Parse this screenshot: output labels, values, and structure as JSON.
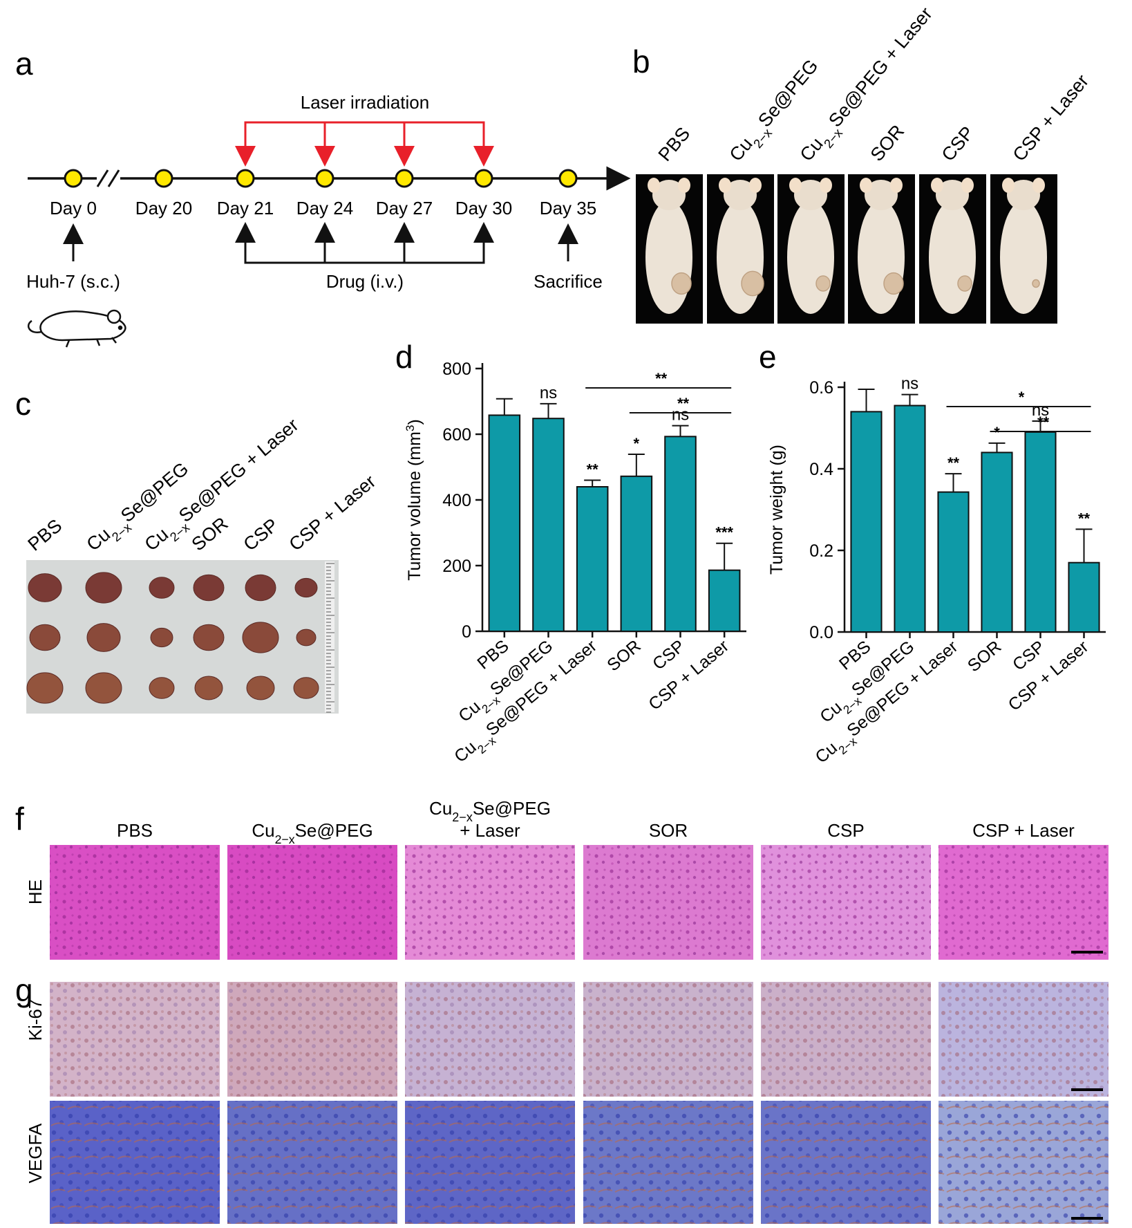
{
  "panel_letters": [
    "a",
    "b",
    "c",
    "d",
    "e",
    "f",
    "g"
  ],
  "timeline": {
    "laser_label": "Laser irradiation",
    "days": [
      "Day 0",
      "Day 20",
      "Day 21",
      "Day 24",
      "Day 27",
      "Day 30",
      "Day 35"
    ],
    "laser_days": [
      "Day 21",
      "Day 24",
      "Day 27",
      "Day 30"
    ],
    "drug_days": [
      "Day 21",
      "Day 24",
      "Day 27",
      "Day 30"
    ],
    "inoculation_label": "Huh-7 (s.c.)",
    "drug_label": "Drug (i.v.)",
    "sacrifice_label": "Sacrifice",
    "node_color": "#ffe800",
    "laser_color": "#e8202a"
  },
  "groups": [
    "PBS",
    "Cu2−xSe@PEG",
    "Cu2−xSe@PEG + Laser",
    "SOR",
    "CSP",
    "CSP + Laser"
  ],
  "group_labels": [
    {
      "pre": "PBS",
      "sub": "",
      "post": ""
    },
    {
      "pre": "Cu",
      "sub": "2−x",
      "post": "Se@PEG"
    },
    {
      "pre": "Cu",
      "sub": "2−x",
      "post": "Se@PEG + Laser"
    },
    {
      "pre": "SOR",
      "sub": "",
      "post": ""
    },
    {
      "pre": "CSP",
      "sub": "",
      "post": ""
    },
    {
      "pre": "CSP + Laser",
      "sub": "",
      "post": ""
    }
  ],
  "chart_data": [
    {
      "type": "bar",
      "panel": "d",
      "ylabel": "Tumor volume (mm³)",
      "ylabel_pre": "Tumor volume (mm",
      "ylabel_sup": "3",
      "ylabel_post": ")",
      "categories": [
        "PBS",
        "Cu2−xSe@PEG",
        "Cu2−xSe@PEG + Laser",
        "SOR",
        "CSP",
        "CSP + Laser"
      ],
      "values": [
        658,
        648,
        440,
        472,
        593,
        186
      ],
      "errors": [
        50,
        45,
        20,
        67,
        33,
        82
      ],
      "significance": [
        "",
        "ns",
        "**",
        "*",
        "ns",
        "***"
      ],
      "comparisons": [
        {
          "from": 2,
          "to": 5,
          "label": "**"
        },
        {
          "from": 3,
          "to": 5,
          "label": "**"
        }
      ],
      "ylim": [
        0,
        800
      ],
      "yticks": [
        0,
        200,
        400,
        600,
        800
      ],
      "bar_color": "#0e9aa7"
    },
    {
      "type": "bar",
      "panel": "e",
      "ylabel": "Tumor weight (g)",
      "categories": [
        "PBS",
        "Cu2−xSe@PEG",
        "Cu2−xSe@PEG + Laser",
        "SOR",
        "CSP",
        "CSP + Laser"
      ],
      "values": [
        0.54,
        0.555,
        0.343,
        0.44,
        0.49,
        0.17
      ],
      "errors": [
        0.055,
        0.027,
        0.045,
        0.023,
        0.027,
        0.082
      ],
      "significance": [
        "",
        "ns",
        "**",
        "*",
        "ns",
        "**"
      ],
      "comparisons": [
        {
          "from": 2,
          "to": 5,
          "label": "*"
        },
        {
          "from": 3,
          "to": 5,
          "label": "**"
        }
      ],
      "ylim": [
        0,
        0.6
      ],
      "yticks": [
        0.0,
        0.2,
        0.4,
        0.6
      ],
      "ytick_labels": [
        "0.0",
        "0.2",
        "0.4",
        "0.6"
      ],
      "bar_color": "#0e9aa7"
    }
  ],
  "histology": {
    "f_header_line1": "Cu2−xSe@PEG",
    "f_header_line2": "+ Laser",
    "row_labels": [
      "HE",
      "Ki-67",
      "VEGFA"
    ],
    "he_colors": [
      "#d94fc4",
      "#d84bc2",
      "#e48ad6",
      "#dc7ad0",
      "#e091dc",
      "#e06ad0"
    ],
    "ki67_colors": [
      "#d3b3c8",
      "#cfa8bb",
      "#c6b2d3",
      "#c9b2cc",
      "#cbb0c9",
      "#bbb4de"
    ],
    "vegfa_colors": [
      "#5a62c8",
      "#6670c6",
      "#5e66c6",
      "#6c78c8",
      "#6a74c8",
      "#9aa6d8"
    ]
  }
}
